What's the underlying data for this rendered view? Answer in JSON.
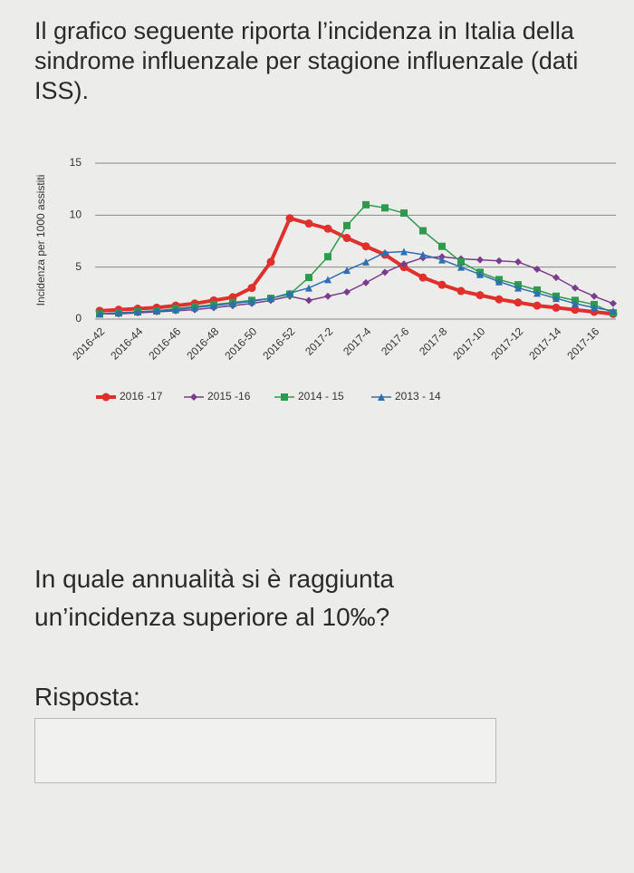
{
  "intro": "Il grafico seguente riporta l’incidenza in Italia della sindrome influenzale per stagione influenzale (dati ISS).",
  "chart_data": {
    "type": "line",
    "y_label": "Incidenza per 1000 assistiti",
    "categories": [
      "2016-42",
      null,
      "2016-44",
      null,
      "2016-46",
      null,
      "2016-48",
      null,
      "2016-50",
      null,
      "2016-52",
      null,
      "2017-2",
      null,
      "2017-4",
      null,
      "2017-6",
      null,
      "2017-8",
      null,
      "2017-10",
      null,
      "2017-12",
      null,
      "2017-14",
      null,
      "2017-16",
      null
    ],
    "ylim": [
      0,
      15
    ],
    "yticks": [
      0,
      5,
      10,
      15
    ],
    "grid": true,
    "legend": "bottom",
    "series": [
      {
        "name": "2016 -17",
        "color": "#e0302c",
        "marker": "circle",
        "values": [
          0.8,
          0.9,
          1.0,
          1.1,
          1.3,
          1.5,
          1.8,
          2.1,
          3.0,
          5.5,
          9.7,
          9.2,
          8.7,
          7.8,
          7.0,
          6.2,
          5.0,
          4.0,
          3.3,
          2.7,
          2.3,
          1.9,
          1.6,
          1.3,
          1.1,
          0.9,
          0.7,
          0.5
        ]
      },
      {
        "name": "2015 -16",
        "color": "#7a3c8c",
        "marker": "diamond",
        "values": [
          0.5,
          0.5,
          0.6,
          0.7,
          0.8,
          0.9,
          1.1,
          1.3,
          1.5,
          1.8,
          2.2,
          1.8,
          2.2,
          2.6,
          3.5,
          4.5,
          5.3,
          5.9,
          6.0,
          5.8,
          5.7,
          5.6,
          5.5,
          4.8,
          4.0,
          3.0,
          2.2,
          1.5
        ]
      },
      {
        "name": "2014 - 15",
        "color": "#2e9a4e",
        "marker": "square",
        "values": [
          0.5,
          0.6,
          0.7,
          0.8,
          1.0,
          1.2,
          1.4,
          1.6,
          1.8,
          2.0,
          2.4,
          4.0,
          6.0,
          9.0,
          11.0,
          10.7,
          10.2,
          8.5,
          7.0,
          5.5,
          4.5,
          3.8,
          3.3,
          2.8,
          2.2,
          1.8,
          1.4,
          0.6
        ]
      },
      {
        "name": "2013 - 14",
        "color": "#2f6fb0",
        "marker": "triangle",
        "values": [
          0.5,
          0.6,
          0.7,
          0.8,
          0.9,
          1.1,
          1.3,
          1.5,
          1.7,
          2.0,
          2.5,
          3.0,
          3.8,
          4.7,
          5.5,
          6.4,
          6.5,
          6.2,
          5.7,
          5.0,
          4.3,
          3.6,
          3.0,
          2.5,
          2.0,
          1.5,
          1.1,
          0.8
        ]
      }
    ]
  },
  "question": "In quale annualità si è raggiunta un’incidenza superiore al 10‰?",
  "answer_label": "Risposta:"
}
